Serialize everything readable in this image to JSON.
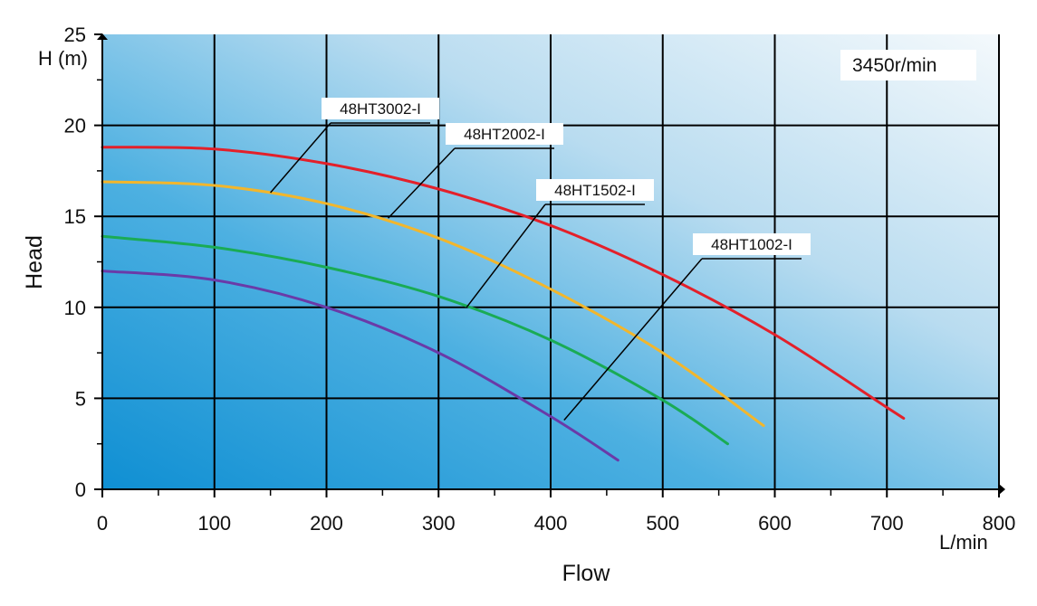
{
  "chart_data": {
    "type": "line",
    "title": "",
    "xlabel": "Flow",
    "ylabel": "Head",
    "x_unit": "L/min",
    "y_unit": "H (m)",
    "xlim": [
      0,
      800
    ],
    "ylim": [
      0,
      25
    ],
    "x_ticks": [
      "0",
      "100",
      "200",
      "300",
      "400",
      "500",
      "600",
      "700",
      "800"
    ],
    "y_ticks": [
      "0",
      "5",
      "10",
      "15",
      "20",
      "25"
    ],
    "grid": true,
    "annotation": "3450r/min",
    "series": [
      {
        "name": "48HT3002-I",
        "color": "#e3202a",
        "x": [
          0,
          100,
          200,
          300,
          400,
          500,
          600,
          700,
          715
        ],
        "y": [
          18.8,
          18.7,
          17.9,
          16.5,
          14.5,
          11.8,
          8.5,
          4.5,
          3.9
        ],
        "label_anchor": [
          150,
          16.3
        ]
      },
      {
        "name": "48HT2002-I",
        "color": "#f2b62c",
        "x": [
          0,
          100,
          200,
          300,
          400,
          500,
          590
        ],
        "y": [
          16.9,
          16.7,
          15.7,
          13.8,
          11.0,
          7.5,
          3.5
        ],
        "label_anchor": [
          255,
          14.9
        ]
      },
      {
        "name": "48HT1502-I",
        "color": "#1aab55",
        "x": [
          0,
          100,
          200,
          300,
          400,
          500,
          558
        ],
        "y": [
          13.9,
          13.3,
          12.2,
          10.6,
          8.2,
          4.9,
          2.5
        ],
        "label_anchor": [
          325,
          10.0
        ]
      },
      {
        "name": "48HT1002-I",
        "color": "#6a3aa8",
        "x": [
          0,
          100,
          200,
          300,
          400,
          460
        ],
        "y": [
          12.0,
          11.5,
          10.0,
          7.5,
          4.0,
          1.6
        ],
        "label_anchor": [
          412,
          3.8
        ]
      }
    ]
  }
}
